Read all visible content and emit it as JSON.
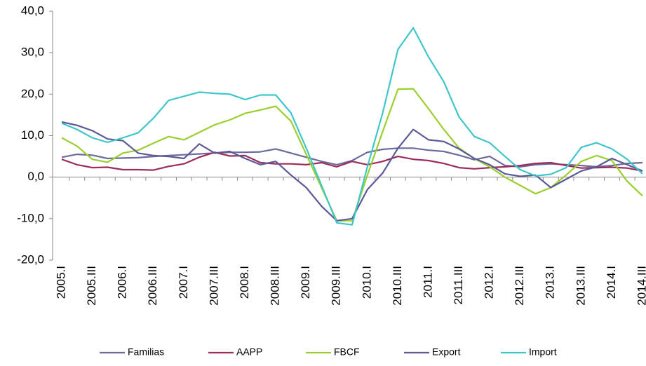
{
  "chart_data": {
    "type": "line",
    "categories": [
      "2005.I",
      null,
      "2005.III",
      null,
      "2006.I",
      null,
      "2006.III",
      null,
      "2007.I",
      null,
      "2007.III",
      null,
      "2008.I",
      null,
      "2008.III",
      null,
      "2009.I",
      null,
      "2009.III",
      null,
      "2010.I",
      null,
      "2010.III",
      null,
      "2011.I",
      null,
      "2011.III",
      null,
      "2012.I",
      null,
      "2012.III",
      null,
      "2013.I",
      null,
      "2013.III",
      null,
      "2014.I",
      null,
      "2014.III"
    ],
    "ylim": [
      -20,
      40
    ],
    "yticks": [
      {
        "value": -20,
        "label": "-20,0"
      },
      {
        "value": -10,
        "label": "-10,0"
      },
      {
        "value": 0,
        "label": "0,0"
      },
      {
        "value": 10,
        "label": "10,0"
      },
      {
        "value": 20,
        "label": "20,0"
      },
      {
        "value": 30,
        "label": "30,0"
      },
      {
        "value": 40,
        "label": "40,0"
      }
    ],
    "grid": false,
    "legend": "bottom",
    "series": [
      {
        "name": "Familias",
        "color": "#6b6b9e",
        "values": [
          4.8,
          5.5,
          5.3,
          4.5,
          4.6,
          4.7,
          5.0,
          5.2,
          5.4,
          5.6,
          5.8,
          6.0,
          6.0,
          6.1,
          6.8,
          5.8,
          4.8,
          3.8,
          3.0,
          4.0,
          6.0,
          6.7,
          7.0,
          7.0,
          6.5,
          6.2,
          5.3,
          4.2,
          5.0,
          2.8,
          2.5,
          3.0,
          3.2,
          3.0,
          2.8,
          2.5,
          2.8,
          3.3,
          3.5
        ]
      },
      {
        "name": "AAPP",
        "color": "#9b2c5c",
        "values": [
          4.3,
          3.0,
          2.3,
          2.4,
          1.8,
          1.8,
          1.7,
          2.6,
          3.2,
          4.8,
          6.0,
          5.1,
          5.2,
          3.5,
          3.2,
          3.2,
          3.0,
          3.5,
          2.5,
          3.8,
          3.0,
          3.8,
          5.0,
          4.3,
          4.0,
          3.3,
          2.3,
          2.0,
          2.3,
          2.5,
          2.8,
          3.3,
          3.5,
          2.8,
          2.2,
          2.3,
          2.4,
          2.2,
          1.5
        ]
      },
      {
        "name": "FBCF",
        "color": "#9bcf2e",
        "values": [
          9.5,
          7.5,
          4.3,
          3.6,
          5.8,
          6.5,
          8.2,
          9.8,
          9.0,
          10.8,
          12.6,
          13.8,
          15.4,
          16.2,
          17.1,
          13.5,
          5.5,
          -2.5,
          -10.5,
          -10.5,
          0.5,
          11.0,
          21.2,
          21.3,
          16.5,
          11.5,
          7.0,
          4.5,
          2.5,
          0,
          -2.0,
          -4.0,
          -2.5,
          0.5,
          3.8,
          5.2,
          4.0,
          -1.0,
          -4.5
        ]
      },
      {
        "name": "Export",
        "color": "#5c5a96",
        "values": [
          13.3,
          12.5,
          11.2,
          9.2,
          8.8,
          5.8,
          5.2,
          5.0,
          4.5,
          8.0,
          5.8,
          6.2,
          4.5,
          3.0,
          3.8,
          0.5,
          -2.5,
          -7.0,
          -10.5,
          -10.0,
          -3.0,
          1.0,
          7.0,
          11.5,
          9.0,
          8.6,
          6.8,
          4.5,
          3.0,
          0.8,
          0.2,
          0.5,
          -2.5,
          -0.5,
          1.5,
          2.5,
          4.5,
          3.0,
          1.5
        ]
      },
      {
        "name": "Import",
        "color": "#3ec6c8",
        "values": [
          13.0,
          11.5,
          9.5,
          8.4,
          9.5,
          10.7,
          14.2,
          18.5,
          19.5,
          20.5,
          20.2,
          20.0,
          18.7,
          19.8,
          19.8,
          15.5,
          7.0,
          -2.0,
          -11.0,
          -11.5,
          2.5,
          15.5,
          30.8,
          36.0,
          29.0,
          23.0,
          14.5,
          9.8,
          8.3,
          5.0,
          1.8,
          0.3,
          0.7,
          2.3,
          7.2,
          8.3,
          6.8,
          4.3,
          0.8
        ]
      }
    ]
  }
}
